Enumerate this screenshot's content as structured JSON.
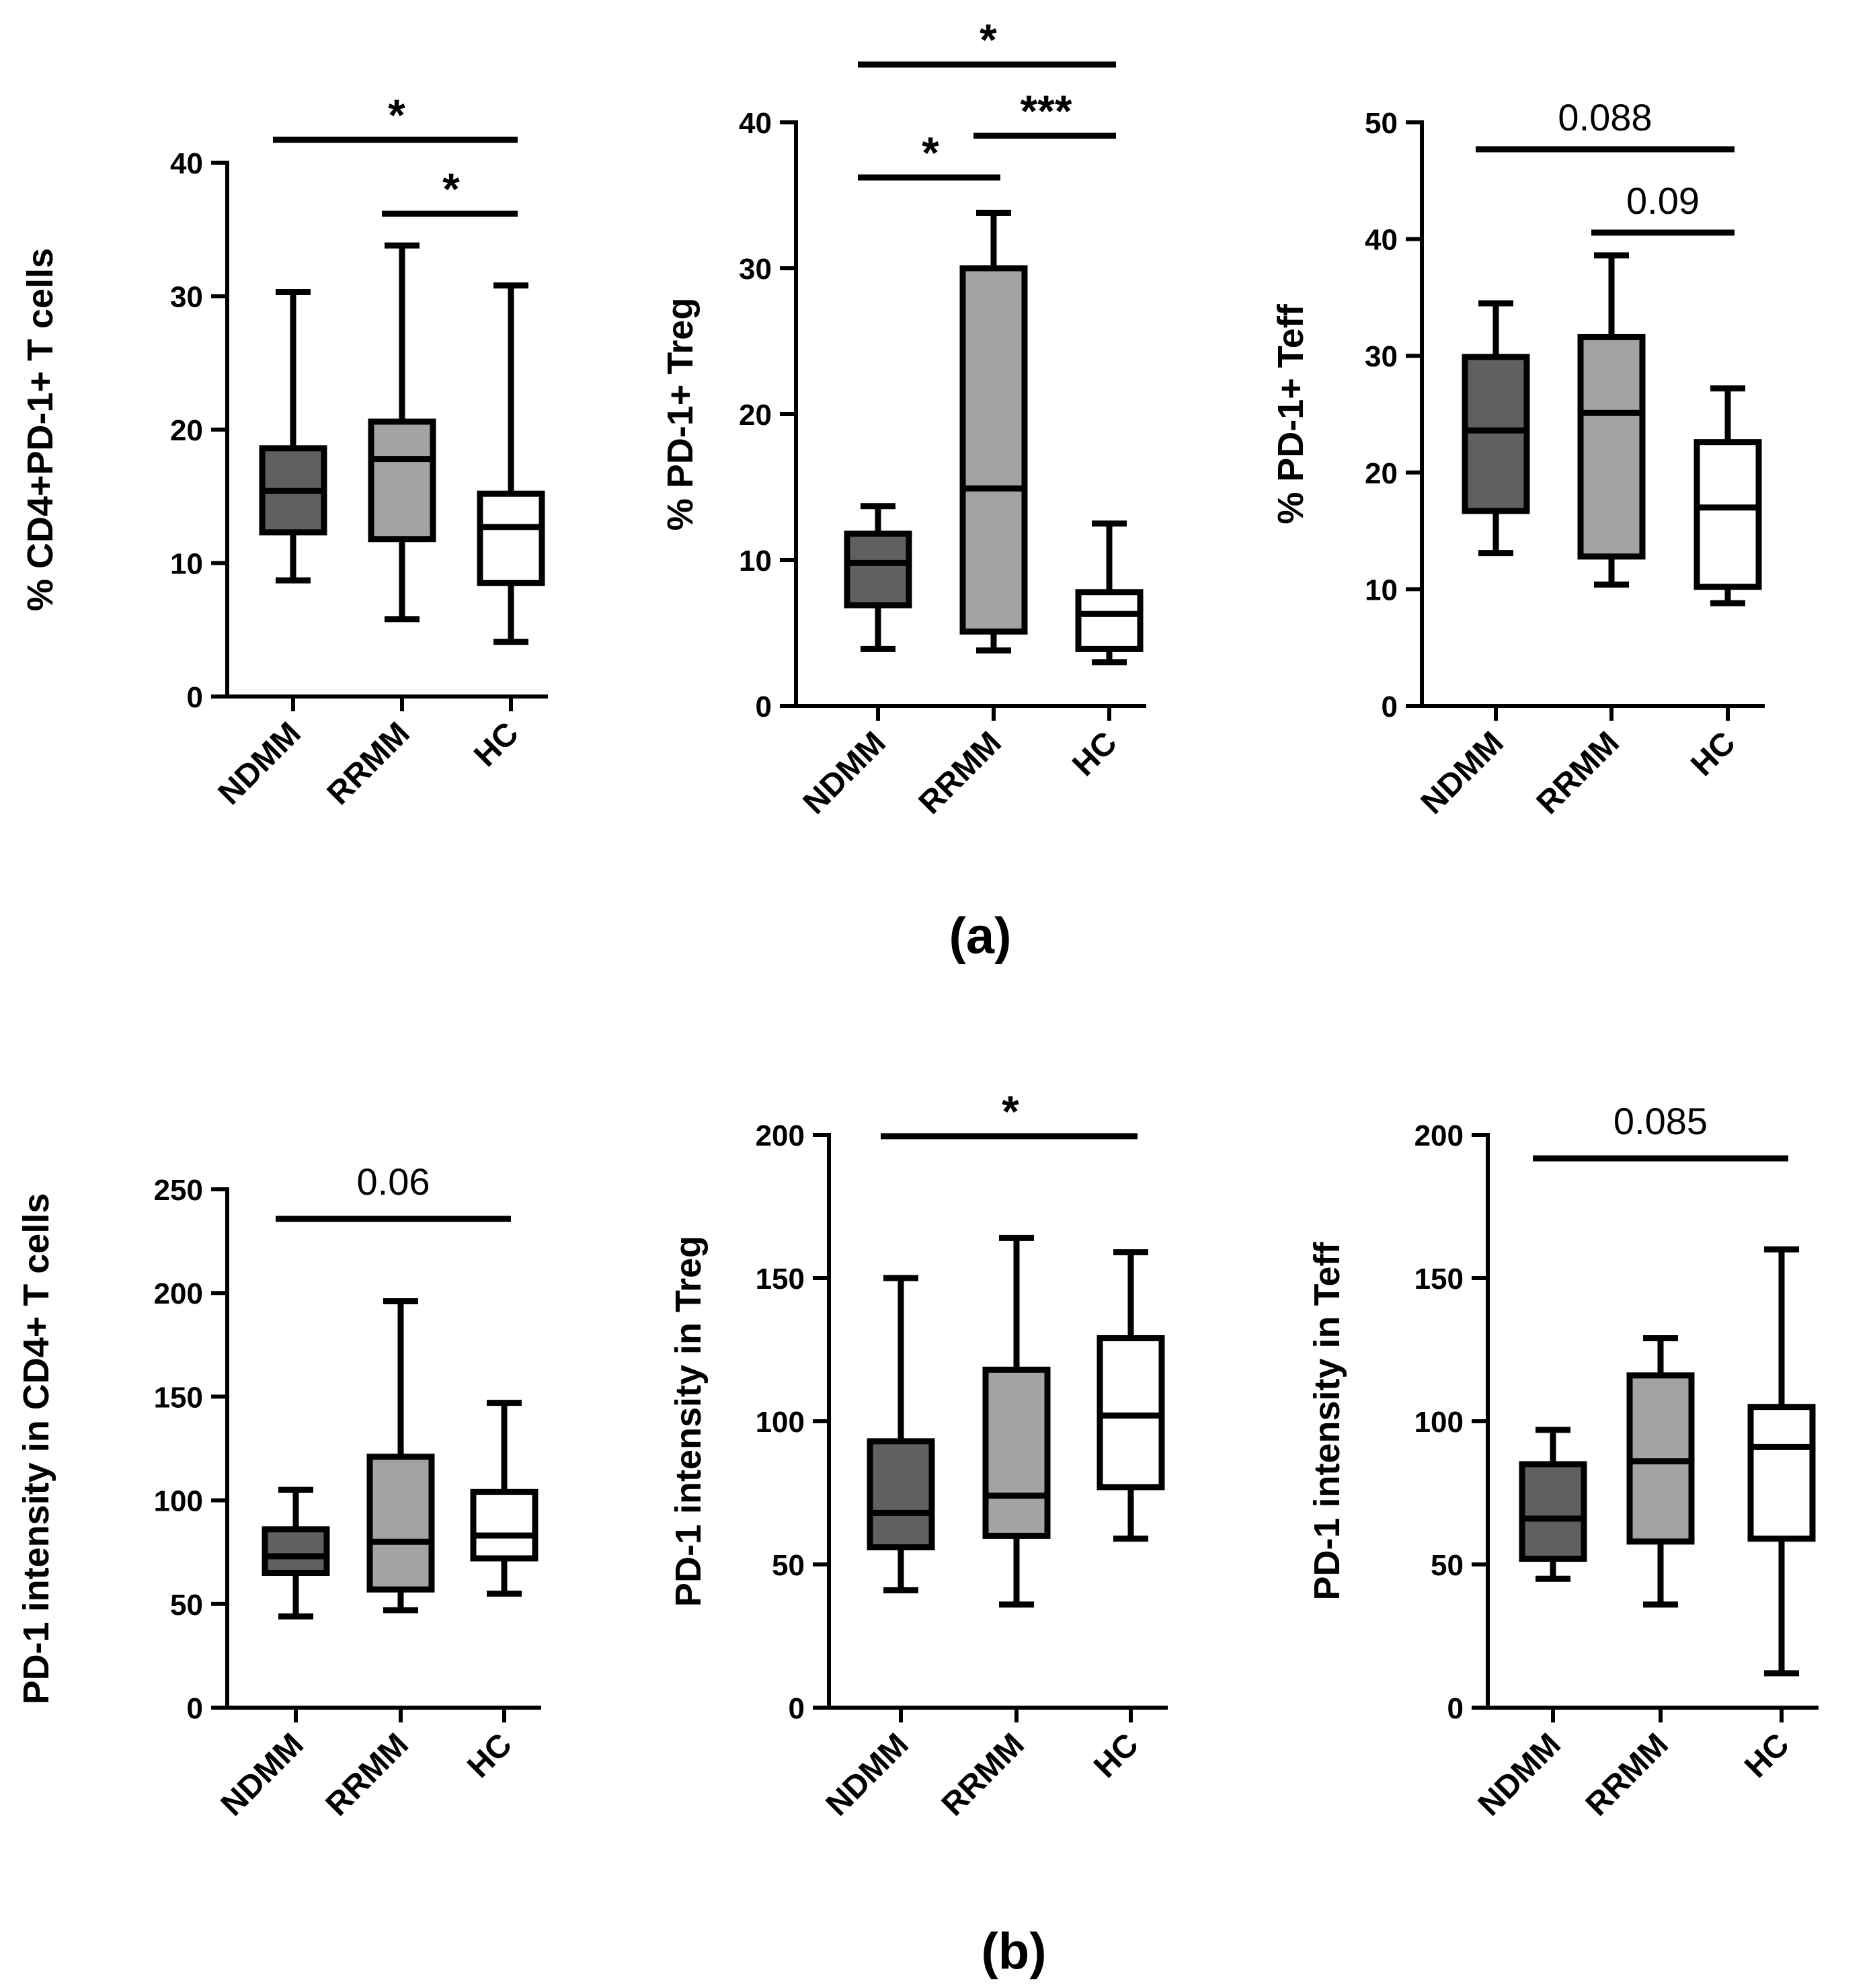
{
  "panel_labels": [
    "(a)",
    "(b)"
  ],
  "colors": {
    "NDMM": "#606060",
    "RRMM": "#a3a3a3",
    "HC": "#ffffff"
  },
  "chart_data": [
    {
      "type": "box",
      "ylabel": "% CD4+PD-1+ T cells",
      "categories": [
        "NDMM",
        "RRMM",
        "HC"
      ],
      "ylim": [
        0,
        40
      ],
      "yticks": [
        0,
        10,
        20,
        30,
        40
      ],
      "boxes": [
        {
          "name": "NDMM",
          "min": 8.7,
          "q1": 12.3,
          "median": 15.4,
          "q3": 18.6,
          "max": 30.3
        },
        {
          "name": "RRMM",
          "min": 5.8,
          "q1": 11.8,
          "median": 17.8,
          "q3": 20.6,
          "max": 33.8
        },
        {
          "name": "HC",
          "min": 4.1,
          "q1": 8.5,
          "median": 12.7,
          "q3": 15.2,
          "max": 30.8
        }
      ],
      "comparisons": [
        {
          "from": 0,
          "to": 2,
          "label": "*",
          "level": 0
        },
        {
          "from": 1,
          "to": 2,
          "label": "*",
          "level": 1
        }
      ]
    },
    {
      "type": "box",
      "ylabel": "% PD-1+ Treg",
      "categories": [
        "NDMM",
        "RRMM",
        "HC"
      ],
      "ylim": [
        0,
        40
      ],
      "yticks": [
        0,
        10,
        20,
        30,
        40
      ],
      "boxes": [
        {
          "name": "NDMM",
          "min": 3.9,
          "q1": 6.9,
          "median": 9.8,
          "q3": 11.8,
          "max": 13.7
        },
        {
          "name": "RRMM",
          "min": 3.8,
          "q1": 5.1,
          "median": 14.9,
          "q3": 30.0,
          "max": 33.8
        },
        {
          "name": "HC",
          "min": 3.0,
          "q1": 3.9,
          "median": 6.3,
          "q3": 7.8,
          "max": 12.5
        }
      ],
      "comparisons": [
        {
          "from": 0,
          "to": 2,
          "label": "*",
          "level": 0
        },
        {
          "from": 1,
          "to": 2,
          "label": "***",
          "level": 1
        },
        {
          "from": 0,
          "to": 1,
          "label": "*",
          "level": 2
        }
      ]
    },
    {
      "type": "box",
      "ylabel": "% PD-1+ Teff",
      "categories": [
        "NDMM",
        "RRMM",
        "HC"
      ],
      "ylim": [
        0,
        50
      ],
      "yticks": [
        0,
        10,
        20,
        30,
        40,
        50
      ],
      "boxes": [
        {
          "name": "NDMM",
          "min": 13.1,
          "q1": 16.7,
          "median": 23.6,
          "q3": 29.9,
          "max": 34.5
        },
        {
          "name": "RRMM",
          "min": 10.4,
          "q1": 12.8,
          "median": 25.1,
          "q3": 31.6,
          "max": 38.6
        },
        {
          "name": "HC",
          "min": 8.8,
          "q1": 10.2,
          "median": 17.0,
          "q3": 22.6,
          "max": 27.2
        }
      ],
      "comparisons": [
        {
          "from": 0,
          "to": 2,
          "label": "0.088",
          "level": 0
        },
        {
          "from": 1,
          "to": 2,
          "label": "0.09",
          "level": 1
        }
      ]
    },
    {
      "type": "box",
      "ylabel": "PD-1 intensity in CD4+ T cells",
      "categories": [
        "NDMM",
        "RRMM",
        "HC"
      ],
      "ylim": [
        0,
        250
      ],
      "yticks": [
        0,
        50,
        100,
        150,
        200,
        250
      ],
      "boxes": [
        {
          "name": "NDMM",
          "min": 44,
          "q1": 65,
          "median": 73,
          "q3": 86,
          "max": 105
        },
        {
          "name": "RRMM",
          "min": 47,
          "q1": 57,
          "median": 80,
          "q3": 121,
          "max": 196
        },
        {
          "name": "HC",
          "min": 55,
          "q1": 72,
          "median": 83,
          "q3": 104,
          "max": 147
        }
      ],
      "comparisons": [
        {
          "from": 0,
          "to": 2,
          "label": "0.06",
          "level": 0
        }
      ]
    },
    {
      "type": "box",
      "ylabel": "PD-1 intensity in Treg",
      "categories": [
        "NDMM",
        "RRMM",
        "HC"
      ],
      "ylim": [
        0,
        200
      ],
      "yticks": [
        0,
        50,
        100,
        150,
        200
      ],
      "boxes": [
        {
          "name": "NDMM",
          "min": 41,
          "q1": 56,
          "median": 68,
          "q3": 93,
          "max": 150
        },
        {
          "name": "RRMM",
          "min": 36,
          "q1": 60,
          "median": 74,
          "q3": 118,
          "max": 164
        },
        {
          "name": "HC",
          "min": 59,
          "q1": 77,
          "median": 102,
          "q3": 129,
          "max": 159
        }
      ],
      "comparisons": [
        {
          "from": 0,
          "to": 2,
          "label": "*",
          "level": 0
        }
      ]
    },
    {
      "type": "box",
      "ylabel": "PD-1 intensity in Teff",
      "categories": [
        "NDMM",
        "RRMM",
        "HC"
      ],
      "ylim": [
        0,
        200
      ],
      "yticks": [
        0,
        50,
        100,
        150,
        200
      ],
      "boxes": [
        {
          "name": "NDMM",
          "min": 45,
          "q1": 52,
          "median": 66,
          "q3": 85,
          "max": 97
        },
        {
          "name": "RRMM",
          "min": 36,
          "q1": 58,
          "median": 86,
          "q3": 116,
          "max": 129
        },
        {
          "name": "HC",
          "min": 12,
          "q1": 59,
          "median": 91,
          "q3": 105,
          "max": 160
        }
      ],
      "comparisons": [
        {
          "from": 0,
          "to": 2,
          "label": "0.085",
          "level": 0
        }
      ]
    }
  ]
}
